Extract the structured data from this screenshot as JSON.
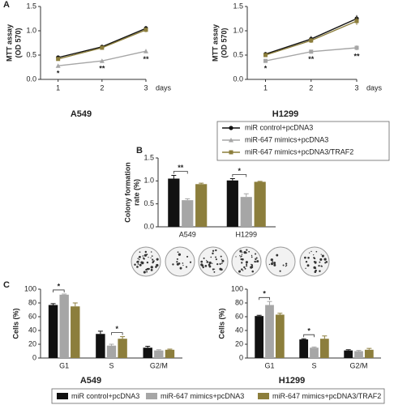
{
  "panels": [
    "A",
    "B",
    "C"
  ],
  "chart_data": [
    {
      "type": "line",
      "title": "A549",
      "ylabel": [
        "MTT assay",
        "(OD 570)"
      ],
      "x_label": "days",
      "x": [
        1,
        2,
        3
      ],
      "xlim": [
        0.6,
        3.0
      ],
      "xticks": [
        1,
        2,
        3
      ],
      "ylim": [
        0,
        1.5
      ],
      "yticks": [
        {
          "value": 0,
          "label": "0.0"
        },
        {
          "value": 0.5,
          "label": "0.5"
        },
        {
          "value": 1,
          "label": "1.0"
        },
        {
          "value": 1.5,
          "label": "1.5"
        }
      ],
      "series": [
        {
          "name": "miR control+pcDNA3",
          "color": "#111111",
          "marker": "circle",
          "values": [
            0.45,
            0.67,
            1.05
          ],
          "errors": [
            0.04,
            0.04,
            0.05
          ]
        },
        {
          "name": "miR-647 mimics+pcDNA3",
          "color": "#a6a6a6",
          "marker": "triangle",
          "values": [
            0.28,
            0.38,
            0.58
          ],
          "errors": [
            0.03,
            0.03,
            0.04
          ],
          "point_labels": [
            "*",
            "**",
            "**"
          ]
        },
        {
          "name": "miR-647 mimics+pcDNA3/TRAF2",
          "color": "#8c7e3c",
          "marker": "square",
          "values": [
            0.42,
            0.65,
            1.02
          ],
          "errors": [
            0.03,
            0.04,
            0.05
          ]
        }
      ]
    },
    {
      "type": "line",
      "title": "H1299",
      "ylabel": [
        "MTT assay",
        "(OD 570)"
      ],
      "x_label": "days",
      "x": [
        1,
        2,
        3
      ],
      "xlim": [
        0.6,
        3.0
      ],
      "xticks": [
        1,
        2,
        3
      ],
      "ylim": [
        0,
        1.5
      ],
      "yticks": [
        {
          "value": 0,
          "label": "0.0"
        },
        {
          "value": 0.5,
          "label": "0.5"
        },
        {
          "value": 1,
          "label": "1.0"
        },
        {
          "value": 1.5,
          "label": "1.5"
        }
      ],
      "series": [
        {
          "name": "miR control+pcDNA3",
          "color": "#111111",
          "marker": "circle",
          "values": [
            0.52,
            0.83,
            1.25
          ],
          "errors": [
            0.04,
            0.06,
            0.07
          ]
        },
        {
          "name": "miR-647 mimics+pcDNA3",
          "color": "#a6a6a6",
          "marker": "square",
          "values": [
            0.38,
            0.57,
            0.65
          ],
          "errors": [
            0.03,
            0.03,
            0.05
          ],
          "point_labels": [
            "*",
            "**",
            "**"
          ]
        },
        {
          "name": "miR-647 mimics+pcDNA3/TRAF2",
          "color": "#8c7e3c",
          "marker": "square",
          "values": [
            0.5,
            0.8,
            1.2
          ],
          "errors": [
            0.04,
            0.05,
            0.08
          ]
        }
      ]
    },
    {
      "type": "bar",
      "ylabel": [
        "Colony formation",
        "rate (%)"
      ],
      "categories": [
        "A549",
        "H1299"
      ],
      "ylim": [
        0,
        1.5
      ],
      "yticks": [
        {
          "value": 0,
          "label": "0.0"
        },
        {
          "value": 0.5,
          "label": "0.5"
        },
        {
          "value": 1,
          "label": "1.0"
        },
        {
          "value": 1.5,
          "label": "1.5"
        }
      ],
      "series": [
        {
          "name": "miR control+pcDNA3",
          "color": "#111111",
          "values": [
            1.05,
            1.01
          ],
          "errors": [
            0.07,
            0.04
          ]
        },
        {
          "name": "miR-647 mimics+pcDNA3",
          "color": "#a6a6a6",
          "values": [
            0.58,
            0.65
          ],
          "errors": [
            0.03,
            0.07
          ]
        },
        {
          "name": "miR-647 mimics+pcDNA3/TRAF2",
          "color": "#8c7e3c",
          "values": [
            0.93,
            0.98
          ],
          "errors": [
            0.02,
            0.01
          ]
        }
      ],
      "brackets": [
        {
          "category": "A549",
          "between": [
            "miR control+pcDNA3",
            "miR-647 mimics+pcDNA3"
          ],
          "label": "**"
        },
        {
          "category": "H1299",
          "between": [
            "miR control+pcDNA3",
            "miR-647 mimics+pcDNA3"
          ],
          "label": "*"
        }
      ]
    },
    {
      "type": "bar",
      "title": "A549",
      "ylabel": [
        "Cells (%)"
      ],
      "categories": [
        "G1",
        "S",
        "G2/M"
      ],
      "ylim": [
        0,
        100
      ],
      "yticks": [
        0,
        20,
        40,
        60,
        80,
        100
      ],
      "series": [
        {
          "name": "miR control+pcDNA3",
          "color": "#111111",
          "values": [
            77,
            35,
            15
          ],
          "errors": [
            2,
            4,
            2
          ]
        },
        {
          "name": "miR-647 mimics+pcDNA3",
          "color": "#a6a6a6",
          "values": [
            92,
            18,
            11
          ],
          "errors": [
            1,
            2,
            1
          ]
        },
        {
          "name": "miR-647 mimics+pcDNA3/TRAF2",
          "color": "#8c7e3c",
          "values": [
            75,
            28,
            12
          ],
          "errors": [
            5,
            3,
            1
          ]
        }
      ],
      "brackets": [
        {
          "category": "G1",
          "between": [
            "miR control+pcDNA3",
            "miR-647 mimics+pcDNA3"
          ],
          "label": "*"
        },
        {
          "category": "S",
          "between": [
            "miR-647 mimics+pcDNA3",
            "miR-647 mimics+pcDNA3/TRAF2"
          ],
          "label": "*"
        }
      ]
    },
    {
      "type": "bar",
      "title": "H1299",
      "ylabel": [
        "Cells (%)"
      ],
      "categories": [
        "G1",
        "S",
        "G2/M"
      ],
      "ylim": [
        0,
        100
      ],
      "yticks": [
        0,
        20,
        40,
        60,
        80,
        100
      ],
      "series": [
        {
          "name": "miR control+pcDNA3",
          "color": "#111111",
          "values": [
            61,
            27,
            11
          ],
          "errors": [
            1,
            1,
            1
          ]
        },
        {
          "name": "miR-647 mimics+pcDNA3",
          "color": "#a6a6a6",
          "values": [
            77,
            15,
            10
          ],
          "errors": [
            5,
            1,
            1
          ]
        },
        {
          "name": "miR-647 mimics+pcDNA3/TRAF2",
          "color": "#8c7e3c",
          "values": [
            63,
            28,
            12
          ],
          "errors": [
            2,
            4,
            2
          ]
        }
      ],
      "brackets": [
        {
          "category": "G1",
          "between": [
            "miR control+pcDNA3",
            "miR-647 mimics+pcDNA3"
          ],
          "label": "*"
        },
        {
          "category": "S",
          "between": [
            "miR control+pcDNA3",
            "miR-647 mimics+pcDNA3"
          ],
          "label": "*"
        }
      ]
    }
  ]
}
